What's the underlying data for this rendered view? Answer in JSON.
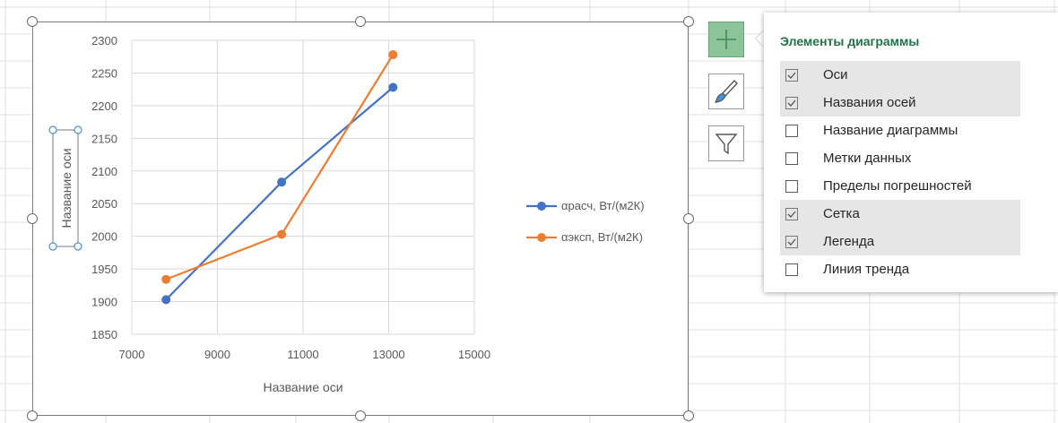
{
  "chart_data": {
    "type": "scatter",
    "xlabel": "Название оси",
    "ylabel": "Название оси",
    "xlim": [
      7000,
      15000
    ],
    "ylim": [
      1850,
      2300
    ],
    "xticks": [
      "7000",
      "9000",
      "11000",
      "13000",
      "15000"
    ],
    "yticks": [
      "1850",
      "1900",
      "1950",
      "2000",
      "2050",
      "2100",
      "2150",
      "2200",
      "2250",
      "2300"
    ],
    "grid": true,
    "legend_position": "right",
    "series": [
      {
        "name": "αрасч, Вт/(м2К)",
        "color": "#4472c4",
        "x": [
          7800,
          10500,
          13100
        ],
        "y": [
          1903,
          2083,
          2228
        ]
      },
      {
        "name": "αэксп, Вт/(м2К)",
        "color": "#ed7d31",
        "x": [
          7800,
          10500,
          13100
        ],
        "y": [
          1934,
          2003,
          2278
        ]
      }
    ]
  },
  "side_buttons": {
    "elements_icon": "plus-icon",
    "styles_icon": "brush-icon",
    "filter_icon": "filter-icon"
  },
  "panel": {
    "title": "Элементы диаграммы",
    "title_color": "#217346",
    "options": [
      {
        "label": "Оси",
        "checked": true
      },
      {
        "label": "Названия осей",
        "checked": true
      },
      {
        "label": "Название диаграммы",
        "checked": false
      },
      {
        "label": "Метки данных",
        "checked": false
      },
      {
        "label": "Пределы погрешностей",
        "checked": false
      },
      {
        "label": "Сетка",
        "checked": true
      },
      {
        "label": "Легенда",
        "checked": true
      },
      {
        "label": "Линия тренда",
        "checked": false
      }
    ]
  }
}
